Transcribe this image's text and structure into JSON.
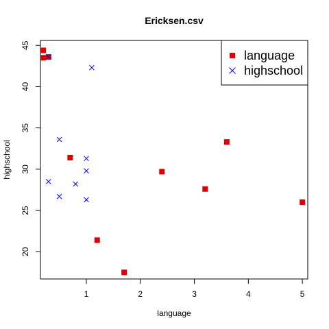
{
  "chart_data": {
    "type": "scatter",
    "title": "Ericksen.csv",
    "xlabel": "language",
    "ylabel": "highschool",
    "xlim": [
      0.15,
      5.1
    ],
    "ylim": [
      16.7,
      45.6
    ],
    "xticks": [
      1,
      2,
      3,
      4,
      5
    ],
    "yticks": [
      20,
      25,
      30,
      35,
      40,
      45
    ],
    "grid": false,
    "legend_position": "top-right",
    "series": [
      {
        "name": "language",
        "marker": "square",
        "color": "#e00000",
        "points": [
          {
            "x": 0.2,
            "y": 44.4
          },
          {
            "x": 0.2,
            "y": 43.5
          },
          {
            "x": 0.3,
            "y": 43.6
          },
          {
            "x": 0.7,
            "y": 31.4
          },
          {
            "x": 1.2,
            "y": 21.4
          },
          {
            "x": 1.7,
            "y": 17.5
          },
          {
            "x": 2.4,
            "y": 29.7
          },
          {
            "x": 3.2,
            "y": 27.6
          },
          {
            "x": 3.6,
            "y": 33.3
          },
          {
            "x": 5.0,
            "y": 26.0
          }
        ]
      },
      {
        "name": "highschool",
        "marker": "x",
        "color": "#0000ff",
        "points": [
          {
            "x": 0.3,
            "y": 43.6
          },
          {
            "x": 1.1,
            "y": 42.3
          },
          {
            "x": 0.5,
            "y": 33.6
          },
          {
            "x": 1.0,
            "y": 31.3
          },
          {
            "x": 1.0,
            "y": 29.8
          },
          {
            "x": 0.3,
            "y": 28.5
          },
          {
            "x": 0.8,
            "y": 28.2
          },
          {
            "x": 0.5,
            "y": 26.7
          },
          {
            "x": 1.0,
            "y": 26.3
          }
        ]
      }
    ]
  }
}
